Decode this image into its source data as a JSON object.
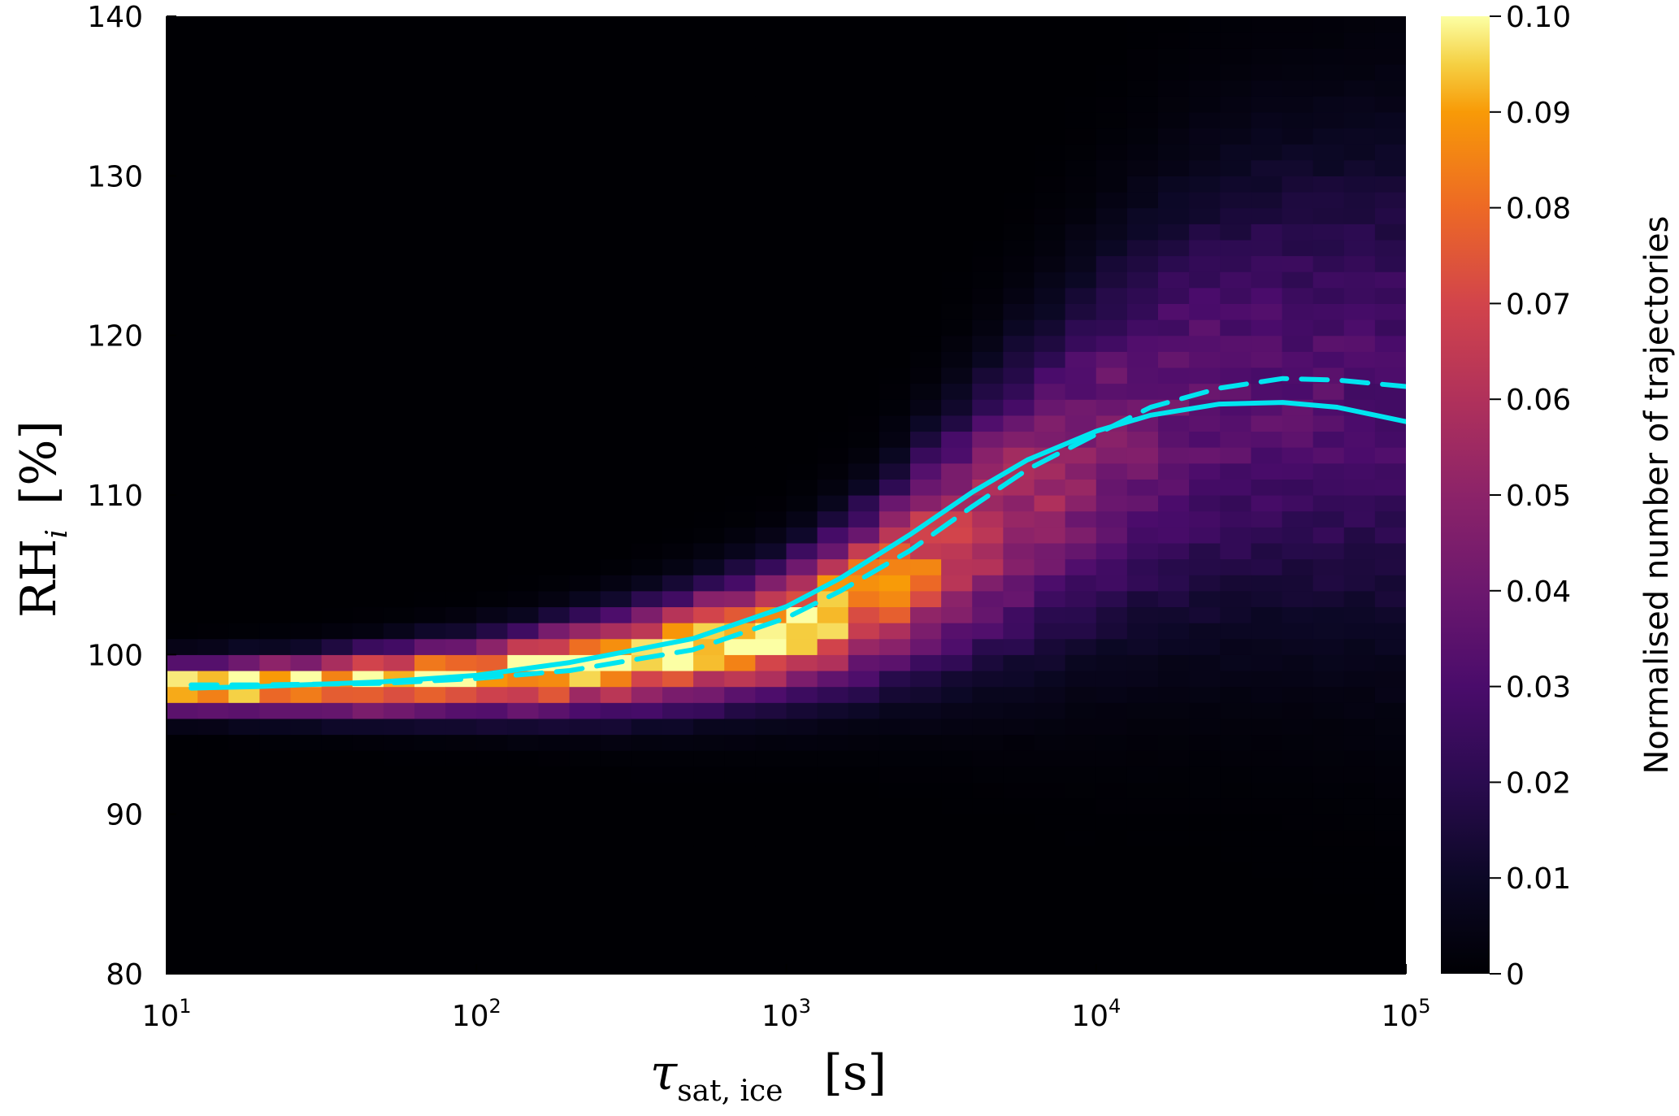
{
  "chart_data": {
    "type": "heatmap",
    "title": "",
    "x_axis": {
      "scale": "log",
      "range": [
        10,
        100000
      ],
      "ticks": [
        {
          "value": 10,
          "base": "10",
          "exp": "1"
        },
        {
          "value": 100,
          "base": "10",
          "exp": "2"
        },
        {
          "value": 1000,
          "base": "10",
          "exp": "3"
        },
        {
          "value": 10000,
          "base": "10",
          "exp": "4"
        },
        {
          "value": 100000,
          "base": "10",
          "exp": "5"
        }
      ],
      "label_symbol": "τ",
      "label_subscript": "sat, ice",
      "label_unit": "[s]"
    },
    "y_axis": {
      "scale": "linear",
      "range": [
        80,
        140
      ],
      "ticks": [
        "80",
        "90",
        "100",
        "110",
        "120",
        "130",
        "140"
      ],
      "label_main": "RH",
      "label_subscript": "i",
      "label_unit": "[%]"
    },
    "colorbar": {
      "colormap": "inferno",
      "range": [
        0,
        0.1
      ],
      "ticks": [
        "0",
        "0.01",
        "0.02",
        "0.03",
        "0.04",
        "0.05",
        "0.06",
        "0.07",
        "0.08",
        "0.09",
        "0.10"
      ],
      "label": "Normalised number of trajectories"
    },
    "density_ridge": {
      "log10_tau": [
        1.0,
        1.5,
        2.0,
        2.5,
        3.0,
        3.3,
        3.6,
        3.9,
        4.2,
        4.5,
        5.0
      ],
      "rhi_center": [
        98.0,
        98.1,
        98.6,
        99.6,
        101.5,
        104.0,
        107.5,
        111.0,
        114.5,
        116.5,
        116.5
      ],
      "rhi_width": [
        1.0,
        1.2,
        1.5,
        2.0,
        2.6,
        3.5,
        5.0,
        6.5,
        8.0,
        9.0,
        10.0
      ],
      "peak_value": [
        0.1,
        0.1,
        0.1,
        0.1,
        0.1,
        0.085,
        0.065,
        0.05,
        0.04,
        0.035,
        0.03
      ]
    },
    "series": [
      {
        "style": "solid",
        "color": "#00e5f0",
        "x": [
          12,
          20,
          50,
          100,
          200,
          500,
          1000,
          1500,
          2500,
          4000,
          6000,
          10000,
          15000,
          25000,
          40000,
          60000,
          100000
        ],
        "y": [
          97.9,
          98.0,
          98.3,
          98.7,
          99.5,
          101.0,
          103.0,
          104.8,
          107.5,
          110.2,
          112.2,
          114.0,
          115.0,
          115.7,
          115.8,
          115.5,
          114.6
        ]
      },
      {
        "style": "dashed",
        "color": "#00e5f0",
        "x": [
          12,
          20,
          50,
          100,
          200,
          500,
          1000,
          1500,
          2500,
          4000,
          6000,
          10000,
          15000,
          25000,
          40000,
          60000,
          100000
        ],
        "y": [
          98.1,
          98.1,
          98.2,
          98.5,
          99.0,
          100.3,
          102.3,
          104.0,
          106.5,
          109.3,
          111.6,
          113.8,
          115.5,
          116.7,
          117.3,
          117.2,
          116.8
        ]
      }
    ]
  }
}
